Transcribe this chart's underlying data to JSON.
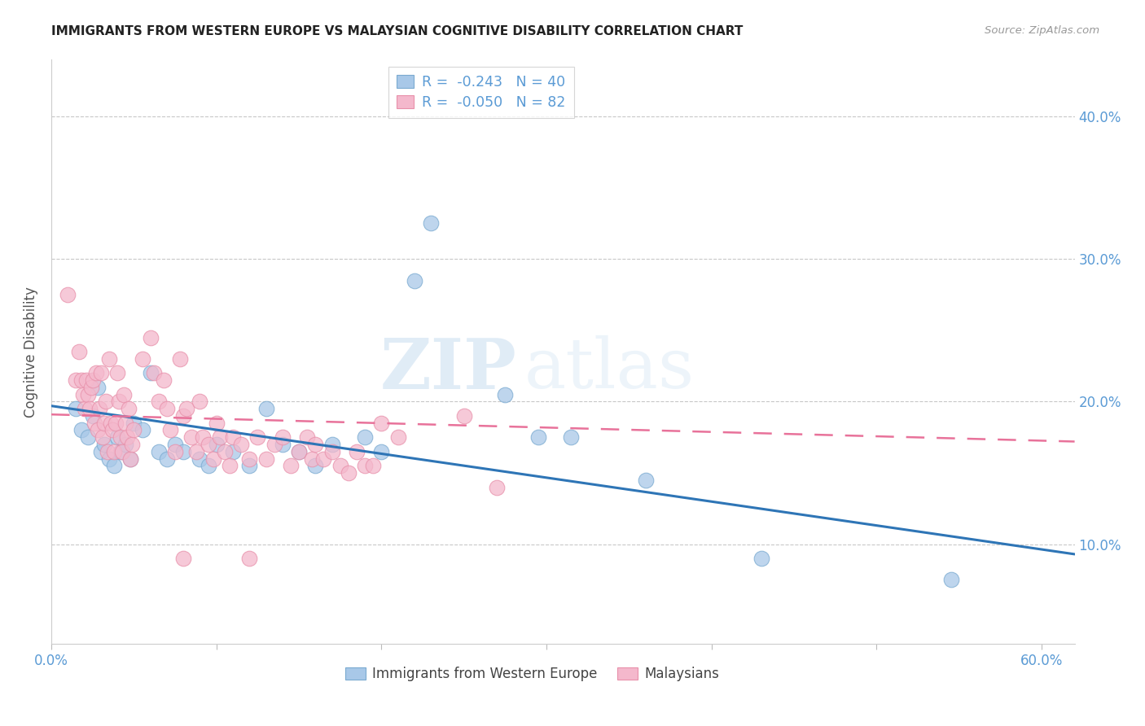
{
  "title": "IMMIGRANTS FROM WESTERN EUROPE VS MALAYSIAN COGNITIVE DISABILITY CORRELATION CHART",
  "source": "Source: ZipAtlas.com",
  "ylabel": "Cognitive Disability",
  "legend_label_blue": "Immigrants from Western Europe",
  "legend_label_pink": "Malaysians",
  "legend_r_blue": "-0.243",
  "legend_n_blue": "40",
  "legend_r_pink": "-0.050",
  "legend_n_pink": "82",
  "xlim": [
    0.0,
    0.62
  ],
  "ylim": [
    0.03,
    0.44
  ],
  "yticks": [
    0.1,
    0.2,
    0.3,
    0.4
  ],
  "xticks": [
    0.0,
    0.1,
    0.2,
    0.3,
    0.4,
    0.5,
    0.6
  ],
  "axis_color": "#5b9bd5",
  "grid_color": "#c8c8c8",
  "background_color": "#ffffff",
  "watermark_zip": "ZIP",
  "watermark_atlas": "atlas",
  "blue_color": "#a8c8e8",
  "pink_color": "#f4b8cc",
  "blue_edge": "#7aaad0",
  "pink_edge": "#e890aa",
  "blue_scatter": [
    [
      0.015,
      0.195
    ],
    [
      0.018,
      0.18
    ],
    [
      0.022,
      0.175
    ],
    [
      0.025,
      0.19
    ],
    [
      0.028,
      0.21
    ],
    [
      0.03,
      0.165
    ],
    [
      0.032,
      0.17
    ],
    [
      0.035,
      0.16
    ],
    [
      0.038,
      0.155
    ],
    [
      0.04,
      0.175
    ],
    [
      0.042,
      0.165
    ],
    [
      0.045,
      0.17
    ],
    [
      0.048,
      0.16
    ],
    [
      0.05,
      0.185
    ],
    [
      0.055,
      0.18
    ],
    [
      0.06,
      0.22
    ],
    [
      0.065,
      0.165
    ],
    [
      0.07,
      0.16
    ],
    [
      0.075,
      0.17
    ],
    [
      0.08,
      0.165
    ],
    [
      0.09,
      0.16
    ],
    [
      0.095,
      0.155
    ],
    [
      0.1,
      0.17
    ],
    [
      0.11,
      0.165
    ],
    [
      0.12,
      0.155
    ],
    [
      0.13,
      0.195
    ],
    [
      0.14,
      0.17
    ],
    [
      0.15,
      0.165
    ],
    [
      0.16,
      0.155
    ],
    [
      0.17,
      0.17
    ],
    [
      0.19,
      0.175
    ],
    [
      0.2,
      0.165
    ],
    [
      0.22,
      0.285
    ],
    [
      0.23,
      0.325
    ],
    [
      0.275,
      0.205
    ],
    [
      0.295,
      0.175
    ],
    [
      0.315,
      0.175
    ],
    [
      0.36,
      0.145
    ],
    [
      0.43,
      0.09
    ],
    [
      0.545,
      0.075
    ]
  ],
  "pink_scatter": [
    [
      0.01,
      0.275
    ],
    [
      0.015,
      0.215
    ],
    [
      0.017,
      0.235
    ],
    [
      0.018,
      0.215
    ],
    [
      0.019,
      0.205
    ],
    [
      0.02,
      0.195
    ],
    [
      0.021,
      0.215
    ],
    [
      0.022,
      0.205
    ],
    [
      0.023,
      0.195
    ],
    [
      0.024,
      0.21
    ],
    [
      0.025,
      0.215
    ],
    [
      0.026,
      0.185
    ],
    [
      0.027,
      0.22
    ],
    [
      0.028,
      0.18
    ],
    [
      0.029,
      0.195
    ],
    [
      0.03,
      0.22
    ],
    [
      0.031,
      0.175
    ],
    [
      0.032,
      0.185
    ],
    [
      0.033,
      0.2
    ],
    [
      0.034,
      0.165
    ],
    [
      0.035,
      0.23
    ],
    [
      0.036,
      0.185
    ],
    [
      0.037,
      0.18
    ],
    [
      0.038,
      0.165
    ],
    [
      0.039,
      0.185
    ],
    [
      0.04,
      0.22
    ],
    [
      0.041,
      0.2
    ],
    [
      0.042,
      0.175
    ],
    [
      0.043,
      0.165
    ],
    [
      0.044,
      0.205
    ],
    [
      0.045,
      0.185
    ],
    [
      0.046,
      0.175
    ],
    [
      0.047,
      0.195
    ],
    [
      0.048,
      0.16
    ],
    [
      0.049,
      0.17
    ],
    [
      0.05,
      0.18
    ],
    [
      0.055,
      0.23
    ],
    [
      0.06,
      0.245
    ],
    [
      0.062,
      0.22
    ],
    [
      0.065,
      0.2
    ],
    [
      0.068,
      0.215
    ],
    [
      0.07,
      0.195
    ],
    [
      0.072,
      0.18
    ],
    [
      0.075,
      0.165
    ],
    [
      0.078,
      0.23
    ],
    [
      0.08,
      0.19
    ],
    [
      0.082,
      0.195
    ],
    [
      0.085,
      0.175
    ],
    [
      0.088,
      0.165
    ],
    [
      0.09,
      0.2
    ],
    [
      0.092,
      0.175
    ],
    [
      0.095,
      0.17
    ],
    [
      0.098,
      0.16
    ],
    [
      0.1,
      0.185
    ],
    [
      0.102,
      0.175
    ],
    [
      0.105,
      0.165
    ],
    [
      0.108,
      0.155
    ],
    [
      0.11,
      0.175
    ],
    [
      0.115,
      0.17
    ],
    [
      0.12,
      0.16
    ],
    [
      0.125,
      0.175
    ],
    [
      0.13,
      0.16
    ],
    [
      0.135,
      0.17
    ],
    [
      0.14,
      0.175
    ],
    [
      0.145,
      0.155
    ],
    [
      0.15,
      0.165
    ],
    [
      0.155,
      0.175
    ],
    [
      0.158,
      0.16
    ],
    [
      0.16,
      0.17
    ],
    [
      0.165,
      0.16
    ],
    [
      0.17,
      0.165
    ],
    [
      0.175,
      0.155
    ],
    [
      0.18,
      0.15
    ],
    [
      0.185,
      0.165
    ],
    [
      0.19,
      0.155
    ],
    [
      0.195,
      0.155
    ],
    [
      0.2,
      0.185
    ],
    [
      0.21,
      0.175
    ],
    [
      0.25,
      0.19
    ],
    [
      0.27,
      0.14
    ],
    [
      0.08,
      0.09
    ],
    [
      0.12,
      0.09
    ]
  ],
  "blue_line": {
    "x0": 0.0,
    "y0": 0.197,
    "x1": 0.62,
    "y1": 0.093
  },
  "pink_line": {
    "x0": 0.0,
    "y0": 0.191,
    "x1": 0.62,
    "y1": 0.172
  }
}
